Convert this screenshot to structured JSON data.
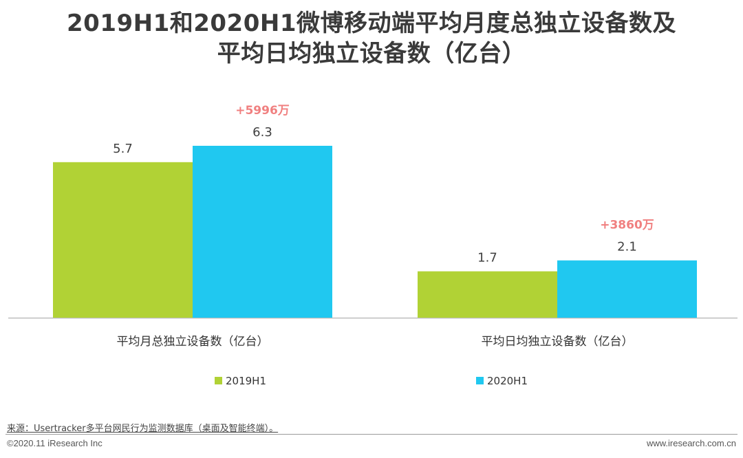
{
  "title": {
    "line1": "2019H1和2020H1微博移动端平均月度总独立设备数及",
    "line2": "平均日均独立设备数（亿台）"
  },
  "chart_data": {
    "type": "bar",
    "categories": [
      "平均月总独立设备数（亿台）",
      "平均日均独立设备数（亿台）"
    ],
    "series": [
      {
        "name": "2019H1",
        "values": [
          5.7,
          1.7
        ],
        "color": "#b1d235"
      },
      {
        "name": "2020H1",
        "values": [
          6.3,
          2.1
        ],
        "color": "#20c8f0"
      }
    ],
    "value_labels": [
      [
        "5.7",
        "1.7"
      ],
      [
        "6.3",
        "2.1"
      ]
    ],
    "annotations": [
      "+5996万",
      "+3860万"
    ],
    "annotation_color": "#f08080",
    "ylim": [
      0,
      6.3
    ],
    "grid": false,
    "legend_position": "bottom",
    "xlabel": "",
    "ylabel": ""
  },
  "footer": {
    "source": "来源：Usertracker多平台网民行为监测数据库（桌面及智能终端）。",
    "copyright": "©2020.11 iResearch Inc",
    "website": "www.iresearch.com.cn"
  }
}
